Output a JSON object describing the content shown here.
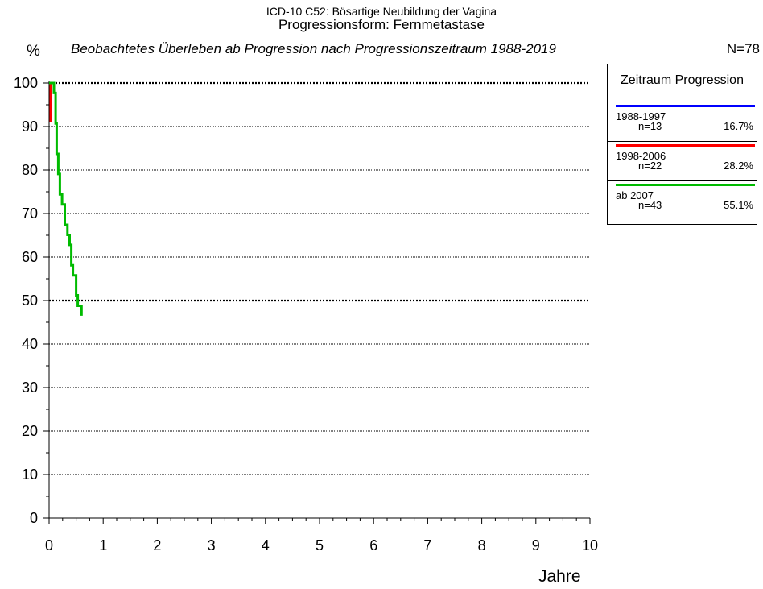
{
  "header": {
    "title_line1": "ICD-10 C52: Bösartige Neubildung der Vagina",
    "title_line2": "Progressionsform: Fernmetastase",
    "subtitle": "Beobachtetes Überleben ab Progression nach Progressionszeitraum 1988-2019",
    "n_total": "N=78"
  },
  "chart_data": {
    "type": "line",
    "title": "Progressionsform: Fernmetastase",
    "subtitle": "Beobachtetes Überleben ab Progression nach Progressionszeitraum 1988-2019",
    "xlabel": "Jahre",
    "ylabel": "%",
    "xlim": [
      0,
      10
    ],
    "ylim": [
      0,
      100
    ],
    "x_ticks": [
      "0",
      "1",
      "2",
      "3",
      "4",
      "5",
      "6",
      "7",
      "8",
      "9",
      "10"
    ],
    "y_ticks": [
      "0",
      "10",
      "20",
      "30",
      "40",
      "50",
      "60",
      "70",
      "80",
      "90",
      "100"
    ],
    "grid": "horizontal dotted",
    "legend_position": "right",
    "legend_title": "Zeitraum Progression",
    "series": [
      {
        "name": "1988-1997",
        "n": "n=13",
        "share": "16.7%",
        "color": "#0000ff",
        "x": [],
        "y": []
      },
      {
        "name": "1998-2006",
        "n": "n=22",
        "share": "28.2%",
        "color": "#ff0000",
        "x": [
          0.0,
          0.03,
          0.03
        ],
        "y": [
          100,
          100,
          91
        ]
      },
      {
        "name": "ab 2007",
        "n": "n=43",
        "share": "55.1%",
        "color": "#00bb00",
        "x": [
          0.0,
          0.09,
          0.09,
          0.12,
          0.12,
          0.14,
          0.14,
          0.17,
          0.17,
          0.2,
          0.2,
          0.24,
          0.24,
          0.29,
          0.29,
          0.34,
          0.34,
          0.38,
          0.38,
          0.41,
          0.41,
          0.44,
          0.44,
          0.5,
          0.5,
          0.53,
          0.53,
          0.6,
          0.6
        ],
        "y": [
          100,
          100,
          97.7,
          97.7,
          90.7,
          90.7,
          83.7,
          83.7,
          79.1,
          79.1,
          74.4,
          74.4,
          72.1,
          72.1,
          67.4,
          67.4,
          65.1,
          65.1,
          62.8,
          62.8,
          58.1,
          58.1,
          55.8,
          55.8,
          51.2,
          51.2,
          48.8,
          48.8,
          46.5
        ]
      }
    ]
  }
}
